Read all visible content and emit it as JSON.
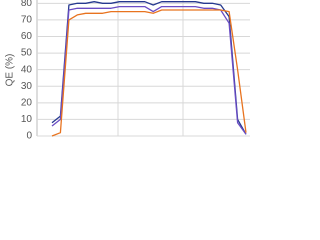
{
  "chart_data": {
    "type": "line",
    "y_label": "QE (%)",
    "categories": [
      null,
      null,
      null,
      null,
      null,
      null,
      null,
      null,
      null,
      null,
      null,
      null,
      null,
      null,
      null,
      null,
      null,
      null,
      null,
      null,
      null,
      null,
      null,
      null
    ],
    "series": [
      {
        "color": "#26398f",
        "values": [
          8,
          12,
          79,
          80,
          80,
          81,
          80,
          80,
          81,
          81,
          81,
          81,
          79,
          81,
          81,
          81,
          81,
          81,
          80,
          80,
          79,
          72,
          10,
          1
        ]
      },
      {
        "color": "#6a4cc4",
        "values": [
          6,
          10,
          76,
          77,
          77,
          77,
          77,
          77,
          78,
          78,
          78,
          78,
          75,
          78,
          78,
          78,
          78,
          78,
          77,
          77,
          76,
          68,
          8,
          1
        ]
      },
      {
        "color": "#e8731f",
        "values": [
          0,
          2,
          70,
          73,
          74,
          74,
          74,
          75,
          75,
          75,
          75,
          75,
          74,
          76,
          76,
          76,
          76,
          76,
          76,
          76,
          76,
          75,
          40,
          2
        ]
      }
    ],
    "ylim": [
      0,
      82
    ],
    "yticks": [
      0,
      10,
      20,
      30,
      40,
      50,
      60,
      70,
      80
    ],
    "grid": true
  }
}
